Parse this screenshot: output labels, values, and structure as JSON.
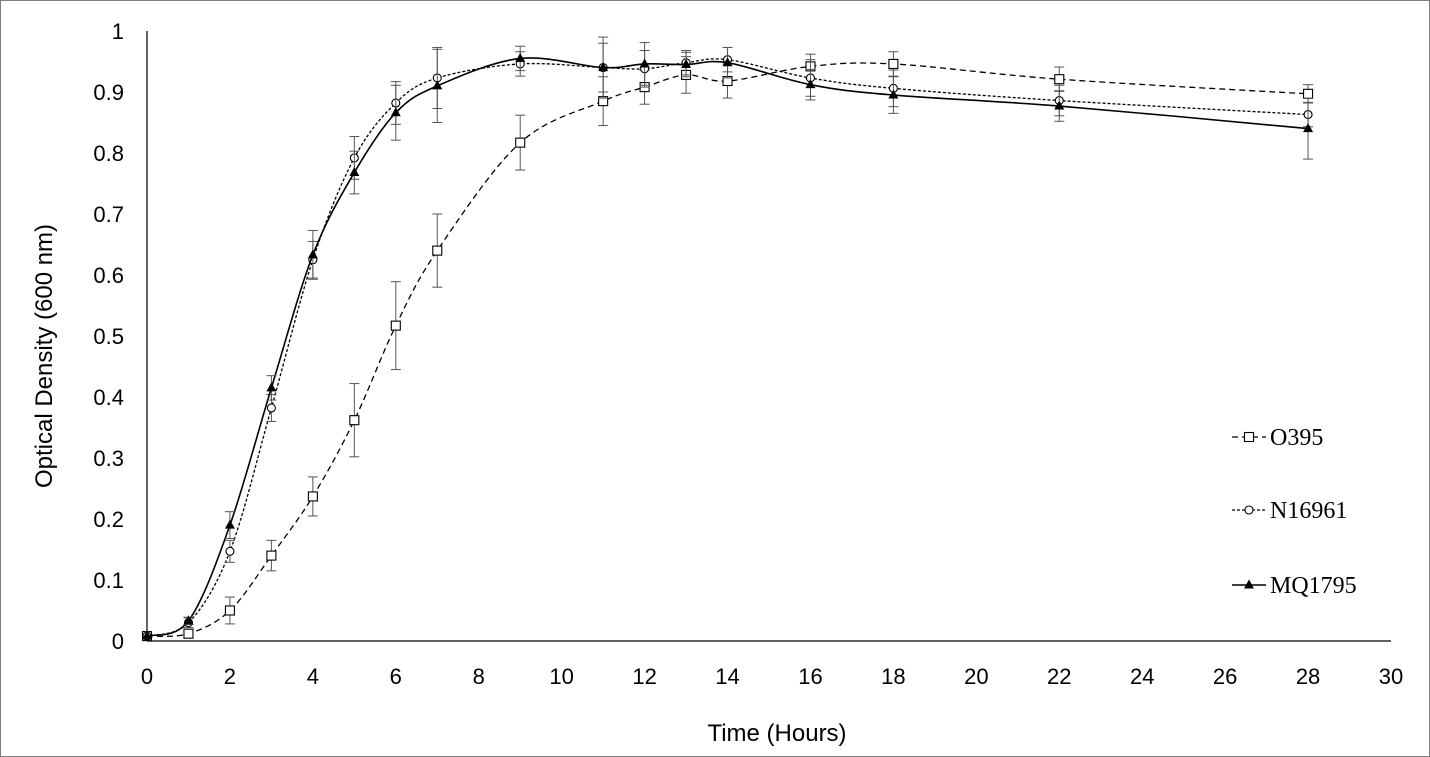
{
  "chart_data": {
    "type": "line",
    "title": "",
    "xlabel": "Time (Hours)",
    "ylabel": "Optical Density (600 nm)",
    "xlim": [
      0,
      30
    ],
    "ylim": [
      0,
      1
    ],
    "xticks": [
      0,
      2,
      4,
      6,
      8,
      10,
      12,
      14,
      16,
      18,
      20,
      22,
      24,
      26,
      28,
      30
    ],
    "yticks": [
      0,
      0.1,
      0.2,
      0.3,
      0.4,
      0.5,
      0.6,
      0.7,
      0.8,
      0.9,
      1
    ],
    "grid": false,
    "legend_position": "right",
    "series": [
      {
        "name": "O395",
        "marker": "square-open",
        "line": "dashed",
        "x": [
          0,
          1,
          2,
          3,
          4,
          5,
          6,
          7,
          9,
          11,
          12,
          13,
          14,
          16,
          18,
          22,
          28
        ],
        "y": [
          0.008,
          0.012,
          0.05,
          0.14,
          0.237,
          0.362,
          0.517,
          0.64,
          0.817,
          0.885,
          0.908,
          0.928,
          0.918,
          0.942,
          0.946,
          0.921,
          0.897
        ],
        "err": [
          0.003,
          0.004,
          0.022,
          0.025,
          0.032,
          0.06,
          0.072,
          0.06,
          0.045,
          0.04,
          0.028,
          0.03,
          0.028,
          0.02,
          0.02,
          0.02,
          0.015
        ]
      },
      {
        "name": "N16961",
        "marker": "circle-open",
        "line": "dotted",
        "x": [
          0,
          1,
          2,
          3,
          4,
          5,
          6,
          7,
          9,
          11,
          12,
          13,
          14,
          16,
          18,
          22,
          28
        ],
        "y": [
          0.008,
          0.03,
          0.147,
          0.382,
          0.625,
          0.792,
          0.882,
          0.923,
          0.946,
          0.94,
          0.938,
          0.948,
          0.953,
          0.923,
          0.906,
          0.886,
          0.863
        ],
        "err": [
          0.003,
          0.008,
          0.018,
          0.022,
          0.03,
          0.035,
          0.035,
          0.05,
          0.02,
          0.05,
          0.03,
          0.02,
          0.02,
          0.03,
          0.03,
          0.025,
          0.02
        ]
      },
      {
        "name": "MQ1795",
        "marker": "triangle-filled",
        "line": "solid",
        "x": [
          0,
          1,
          2,
          3,
          4,
          5,
          6,
          7,
          9,
          11,
          12,
          13,
          14,
          16,
          18,
          22,
          28
        ],
        "y": [
          0.008,
          0.033,
          0.19,
          0.415,
          0.633,
          0.768,
          0.866,
          0.91,
          0.955,
          0.94,
          0.946,
          0.945,
          0.948,
          0.912,
          0.895,
          0.877,
          0.84
        ],
        "err": [
          0.003,
          0.006,
          0.022,
          0.02,
          0.04,
          0.035,
          0.045,
          0.06,
          0.02,
          0.04,
          0.035,
          0.02,
          0.025,
          0.025,
          0.03,
          0.025,
          0.05
        ]
      }
    ]
  }
}
